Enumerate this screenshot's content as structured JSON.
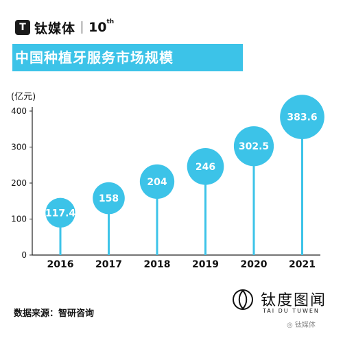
{
  "header": {
    "logo_mark": "T",
    "brand_name": "钛媒体",
    "anniversary": "10",
    "anniversary_suffix": "th",
    "title": "中国种植牙服务市场规模"
  },
  "colors": {
    "accent": "#3cc3e8",
    "bubble": "#3cc3e8",
    "axis": "#222222"
  },
  "chart_data": {
    "type": "bar",
    "style": "lollipop",
    "unit_label": "(亿元)",
    "categories": [
      "2016",
      "2017",
      "2018",
      "2019",
      "2020",
      "2021"
    ],
    "values": [
      117.4,
      158,
      204,
      246,
      302.5,
      383.6
    ],
    "value_labels": [
      "117.4",
      "158",
      "204",
      "246",
      "302.5",
      "383.6"
    ],
    "ylim": [
      0,
      400
    ],
    "yticks": [
      0,
      100,
      200,
      300,
      400
    ],
    "ytick_labels": [
      "0",
      "100",
      "200",
      "300",
      "400"
    ],
    "grid": false,
    "legend": "none"
  },
  "footer": {
    "source": "数据来源：智研咨询",
    "brand_cn": "钛度图闻",
    "brand_en": "TAI DU TUWEN",
    "wechat": "钛媒体"
  }
}
